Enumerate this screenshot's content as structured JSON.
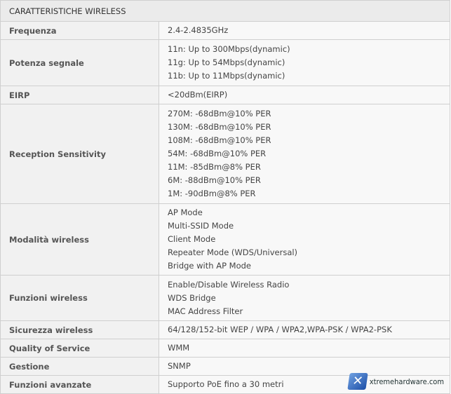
{
  "header": "CARATTERISTICHE WIRELESS",
  "rows": [
    {
      "label": "Frequenza",
      "values": [
        "2.4-2.4835GHz"
      ]
    },
    {
      "label": "Potenza segnale",
      "values": [
        "11n: Up to 300Mbps(dynamic)",
        "11g: Up to 54Mbps(dynamic)",
        "11b: Up to 11Mbps(dynamic)"
      ]
    },
    {
      "label": "EIRP",
      "values": [
        "<20dBm(EIRP)"
      ]
    },
    {
      "label": "Reception Sensitivity",
      "values": [
        "270M: -68dBm@10% PER",
        "130M: -68dBm@10% PER",
        "108M: -68dBm@10% PER",
        "54M: -68dBm@10% PER",
        "11M: -85dBm@8% PER",
        "6M: -88dBm@10% PER",
        "1M: -90dBm@8% PER"
      ]
    },
    {
      "label": "Modalità wireless",
      "values": [
        "AP Mode",
        "Multi-SSID Mode",
        "Client Mode",
        "Repeater Mode (WDS/Universal)",
        "Bridge with AP Mode"
      ]
    },
    {
      "label": "Funzioni wireless",
      "values": [
        "Enable/Disable Wireless Radio",
        "WDS Bridge",
        "MAC Address Filter"
      ]
    },
    {
      "label": "Sicurezza wireless",
      "values": [
        "64/128/152-bit WEP / WPA / WPA2,WPA-PSK / WPA2-PSK"
      ]
    },
    {
      "label": "Quality of Service",
      "values": [
        "WMM"
      ]
    },
    {
      "label": "Gestione",
      "values": [
        "SNMP"
      ]
    },
    {
      "label": "Funzioni avanzate",
      "values": [
        "Supporto PoE fino a 30 metri"
      ]
    }
  ],
  "watermark": {
    "icon": "x-logo-icon",
    "text": "xtremehardware.com"
  }
}
